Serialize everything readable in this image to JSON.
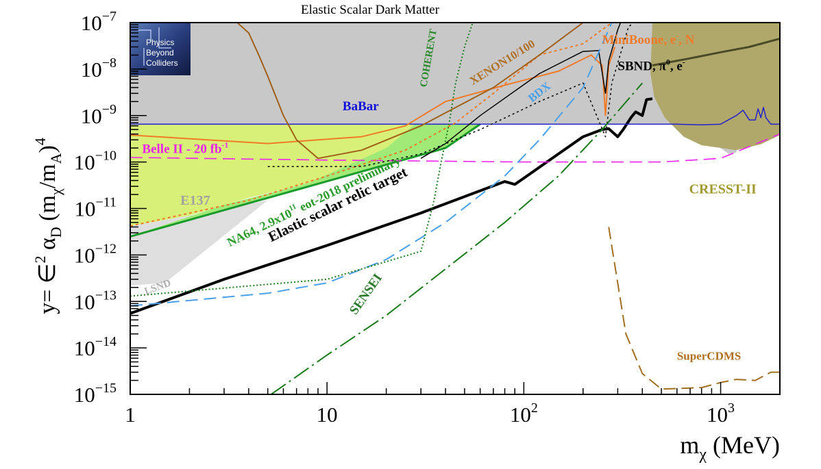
{
  "title": "Elastic Scalar Dark Matter",
  "logo": {
    "lines": [
      "Physics",
      "Beyond",
      "Colliders"
    ]
  },
  "chart_data": {
    "type": "line",
    "title": "Elastic Scalar Dark Matter",
    "xscale": "log",
    "yscale": "log",
    "xlim": [
      1,
      2000
    ],
    "ylim": [
      1e-15,
      1e-07
    ],
    "xlabel_parts": {
      "main": "m",
      "sub": "χ",
      "rest": " (MeV)"
    },
    "ylabel_parts": {
      "a": "y= ∈",
      "b": "2",
      "c": " α",
      "d": "D",
      "e": " (m",
      "f": "χ",
      "g": "/m",
      "h": "A",
      "i": ")",
      "j": "4"
    },
    "x_ticks": [
      {
        "value": 1,
        "label": "1"
      },
      {
        "value": 10,
        "label": "10"
      },
      {
        "value": 100,
        "label": "10",
        "exp": "2"
      },
      {
        "value": 1000,
        "label": "10",
        "exp": "3"
      }
    ],
    "y_ticks": [
      {
        "value": 1e-07,
        "exp": "−7"
      },
      {
        "value": 1e-08,
        "exp": "−8"
      },
      {
        "value": 1e-09,
        "exp": "−9"
      },
      {
        "value": 1e-10,
        "exp": "−10"
      },
      {
        "value": 1e-11,
        "exp": "−11"
      },
      {
        "value": 1e-12,
        "exp": "−12"
      },
      {
        "value": 1e-13,
        "exp": "−13"
      },
      {
        "value": 1e-14,
        "exp": "−14"
      },
      {
        "value": 1e-15,
        "exp": "−15"
      }
    ],
    "regions": [
      {
        "name": "BaBar",
        "fill": "#c8c8c8",
        "points": [
          [
            1,
            1e-07
          ],
          [
            2000,
            1e-07
          ],
          [
            2000,
            6.5e-10
          ],
          [
            1800,
            6.5e-10
          ],
          [
            1700,
            9e-10
          ],
          [
            1650,
            1.5e-09
          ],
          [
            1600,
            9e-10
          ],
          [
            1550,
            1.4e-09
          ],
          [
            1500,
            8e-10
          ],
          [
            1400,
            8e-10
          ],
          [
            1300,
            1.3e-09
          ],
          [
            1200,
            1.6e-10
          ],
          [
            1100,
            1.5e-10
          ],
          [
            1000,
            2e-10
          ],
          [
            800,
            3e-10
          ],
          [
            600,
            6.5e-10
          ],
          [
            1,
            6.5e-10
          ]
        ]
      },
      {
        "name": "E137",
        "fill": "#d8f078",
        "points": [
          [
            1,
            6.5e-10
          ],
          [
            28,
            6.5e-10
          ],
          [
            26,
            5e-10
          ],
          [
            22,
            2.3e-10
          ],
          [
            15,
            9e-11
          ],
          [
            8,
            3.5e-11
          ],
          [
            4,
            1.7e-11
          ],
          [
            2,
            7e-12
          ],
          [
            1,
            4.2e-12
          ]
        ]
      },
      {
        "name": "LSND",
        "fill": "#dedede",
        "points": [
          [
            1,
            4.2e-12
          ],
          [
            2,
            7e-12
          ],
          [
            5,
            1.5e-11
          ],
          [
            1.5,
            2.5e-13
          ],
          [
            1,
            2.2e-13
          ]
        ]
      },
      {
        "name": "NA64",
        "fill": "#a0ea78",
        "points": [
          [
            1,
            2.5e-12
          ],
          [
            40,
            2e-10
          ],
          [
            60,
            6.5e-10
          ],
          [
            28,
            6.5e-10
          ],
          [
            20,
            2e-10
          ],
          [
            8,
            3.5e-11
          ],
          [
            3,
            1.2e-11
          ],
          [
            1,
            2.5e-12
          ]
        ]
      },
      {
        "name": "CRESST-II",
        "fill": "#b0a86a",
        "points": [
          [
            450,
            1e-07
          ],
          [
            2000,
            1e-07
          ],
          [
            2000,
            3.8e-10
          ],
          [
            1600,
            2.4e-10
          ],
          [
            1200,
            1.8e-10
          ],
          [
            800,
            2.3e-10
          ],
          [
            650,
            3.5e-10
          ],
          [
            520,
            9e-10
          ],
          [
            460,
            2.5e-09
          ],
          [
            440,
            8e-09
          ],
          [
            450,
            1e-07
          ]
        ]
      }
    ],
    "series": [
      {
        "name": "Elastic scalar relic target",
        "color": "#000000",
        "width": 4,
        "dash": "",
        "points": [
          [
            1,
            5.5e-14
          ],
          [
            3,
            3e-13
          ],
          [
            10,
            1.6e-12
          ],
          [
            30,
            8e-12
          ],
          [
            80,
            3.8e-11
          ],
          [
            90,
            3.3e-11
          ],
          [
            100,
            4.5e-11
          ],
          [
            150,
            1.5e-10
          ],
          [
            200,
            3.5e-10
          ],
          [
            250,
            5e-10
          ],
          [
            270,
            5.2e-10
          ],
          [
            300,
            3.5e-10
          ],
          [
            320,
            5e-10
          ],
          [
            350,
            9e-10
          ],
          [
            370,
            1.2e-09
          ],
          [
            400,
            1e-09
          ],
          [
            420,
            2.2e-09
          ],
          [
            450,
            2.3e-09
          ]
        ]
      },
      {
        "name": "NA64, 2.9x10¹¹ eot-2018 preliminary",
        "color": "#1a9a2a",
        "width": 3,
        "dash": "",
        "points": [
          [
            1,
            2.5e-12
          ],
          [
            40,
            2e-10
          ],
          [
            60,
            6.5e-10
          ]
        ]
      },
      {
        "name": "Belle II - 20 fb⁻¹",
        "color": "#ee22ee",
        "width": 1.6,
        "dash": "18 9",
        "points": [
          [
            1,
            1.25e-10
          ],
          [
            10,
            1.1e-10
          ],
          [
            100,
            1e-10
          ],
          [
            500,
            1e-10
          ],
          [
            1000,
            1.2e-10
          ],
          [
            2000,
            4e-10
          ]
        ]
      },
      {
        "name": "BaBar",
        "color": "#2222cc",
        "width": 1.5,
        "dash": "",
        "points": [
          [
            1,
            6.5e-10
          ],
          [
            600,
            6.5e-10
          ],
          [
            800,
            6.3e-10
          ],
          [
            1000,
            6.5e-10
          ],
          [
            1200,
            1e-09
          ],
          [
            1300,
            1.3e-09
          ],
          [
            1400,
            8e-10
          ],
          [
            1500,
            8e-10
          ],
          [
            1550,
            1.4e-09
          ],
          [
            1600,
            9e-10
          ],
          [
            1650,
            1.5e-09
          ],
          [
            1700,
            9e-10
          ],
          [
            1800,
            6.5e-10
          ],
          [
            2000,
            6.5e-10
          ]
        ]
      },
      {
        "name": "MiniBoone, e⁻, N",
        "color": "#f07a28",
        "width": 2,
        "dash": "",
        "points": [
          [
            1,
            3.8e-10
          ],
          [
            5,
            2.5e-10
          ],
          [
            15,
            3.5e-10
          ],
          [
            25,
            6e-10
          ],
          [
            40,
            2e-09
          ],
          [
            80,
            4.5e-09
          ],
          [
            150,
            9e-09
          ],
          [
            220,
            2e-08
          ],
          [
            250,
            1.2e-08
          ],
          [
            260,
            1e-09
          ],
          [
            270,
            1.2e-08
          ],
          [
            290,
            3e-08
          ]
        ]
      },
      {
        "name": "MiniBoone dotted",
        "color": "#f07a28",
        "width": 2,
        "dash": "4 4",
        "points": [
          [
            1,
            4.2e-12
          ],
          [
            4,
            1.5e-11
          ],
          [
            10,
            5e-11
          ],
          [
            25,
            1.8e-10
          ],
          [
            45,
            7e-10
          ],
          [
            70,
            3e-09
          ],
          [
            120,
            2e-08
          ],
          [
            200,
            3.5e-08
          ],
          [
            280,
            1e-07
          ]
        ]
      },
      {
        "name": "XENON10/100",
        "color": "#a06018",
        "width": 2,
        "dash": "",
        "points": [
          [
            3.5,
            1e-07
          ],
          [
            4,
            6e-08
          ],
          [
            4.5,
            2e-08
          ],
          [
            5,
            7e-09
          ],
          [
            6,
            1e-09
          ],
          [
            7,
            3e-10
          ],
          [
            9,
            1.2e-10
          ],
          [
            15,
            1.8e-10
          ],
          [
            30,
            6e-10
          ],
          [
            70,
            4e-09
          ],
          [
            120,
            2e-08
          ],
          [
            200,
            1e-07
          ]
        ]
      },
      {
        "name": "SBND, π⁰, e⁻",
        "color": "#000000",
        "width": 1.5,
        "dash": "",
        "points": [
          [
            30,
            1.2e-10
          ],
          [
            40,
            2.5e-10
          ],
          [
            60,
            1e-09
          ],
          [
            120,
            8e-09
          ],
          [
            200,
            2.4e-08
          ],
          [
            240,
            2.5e-08
          ],
          [
            260,
            3e-09
          ],
          [
            270,
            1.5e-08
          ],
          [
            300,
            7e-08
          ],
          [
            310,
            1e-07
          ]
        ]
      },
      {
        "name": "SBND dotted",
        "color": "#000000",
        "width": 1.5,
        "dash": "3 4",
        "points": [
          [
            5,
            8e-11
          ],
          [
            15,
            8e-11
          ],
          [
            30,
            1.5e-10
          ],
          [
            60,
            5e-10
          ],
          [
            120,
            2e-09
          ],
          [
            200,
            5e-09
          ],
          [
            260,
            3.5e-10
          ],
          [
            280,
            5e-09
          ],
          [
            340,
            8e-08
          ],
          [
            360,
            1e-07
          ]
        ]
      },
      {
        "name": "BDX",
        "color": "#4aa0e8",
        "width": 2,
        "dash": "18 9",
        "points": [
          [
            1,
            8e-14
          ],
          [
            5,
            1.5e-13
          ],
          [
            10,
            2.5e-13
          ],
          [
            20,
            8e-13
          ],
          [
            40,
            5e-12
          ],
          [
            80,
            5e-11
          ],
          [
            120,
            3e-10
          ],
          [
            200,
            4e-09
          ],
          [
            280,
            1e-07
          ]
        ]
      },
      {
        "name": "COHERENT",
        "color": "#1a7a1a",
        "width": 2,
        "dash": "2 3",
        "points": [
          [
            1,
            1.3e-13
          ],
          [
            10,
            3e-13
          ],
          [
            30,
            1.2e-12
          ],
          [
            35,
            1.5e-11
          ],
          [
            38,
            1e-10
          ],
          [
            42,
            8e-10
          ],
          [
            45,
            5e-09
          ],
          [
            50,
            3e-08
          ],
          [
            55,
            1e-07
          ]
        ]
      },
      {
        "name": "SENSEI",
        "color": "#1a7a1a",
        "width": 2,
        "dash": "26 6 3 6",
        "points": [
          [
            5.2,
            1e-15
          ],
          [
            10,
            7e-15
          ],
          [
            20,
            5e-14
          ],
          [
            40,
            5e-13
          ],
          [
            80,
            5e-12
          ],
          [
            150,
            5e-11
          ],
          [
            250,
            5e-10
          ],
          [
            400,
            5e-09
          ]
        ]
      },
      {
        "name": "SuperCDMS",
        "color": "#a07020",
        "width": 2,
        "dash": "18 8",
        "points": [
          [
            270,
            4e-12
          ],
          [
            330,
            2e-14
          ],
          [
            400,
            2.8e-15
          ],
          [
            500,
            1.3e-15
          ],
          [
            800,
            1.4e-15
          ],
          [
            1000,
            1.8e-15
          ],
          [
            1200,
            2.1e-15
          ],
          [
            1500,
            2e-15
          ],
          [
            1800,
            3e-15
          ],
          [
            2000,
            3e-15
          ]
        ]
      },
      {
        "name": "CRESST-II",
        "color": "#4a4a28",
        "width": 3,
        "dash": "",
        "points": [
          [
            450,
            1.2e-08
          ],
          [
            700,
            1.7e-08
          ],
          [
            1000,
            2.3e-08
          ],
          [
            1400,
            3e-08
          ],
          [
            2000,
            4.5e-08
          ]
        ]
      }
    ],
    "labels": [
      {
        "text": "BaBar",
        "x": 12,
        "y": 1.3e-09,
        "color": "#1111dd",
        "size": 19,
        "rot": 0
      },
      {
        "text": "E137",
        "x": 1.8,
        "y": 1.2e-11,
        "color": "#a0a0a0",
        "size": 20,
        "rot": 0
      },
      {
        "text": "LSND",
        "x": 1.2,
        "y": 1.4e-13,
        "color": "#b0b0b0",
        "size": 15,
        "rot": -20
      },
      {
        "text": "NA64, 2.9x10",
        "sup": "11",
        "tail": " eot-2018 preliminary",
        "x": 3.2,
        "y": 1.5e-12,
        "color": "#2a9a2a",
        "size": 18,
        "rot": -26
      },
      {
        "text": "Elastic scalar relic target",
        "x": 5.2,
        "y": 1.9e-12,
        "color": "#000000",
        "size": 21,
        "rot": -26
      },
      {
        "text": "Belle II - 20 fb",
        "sup": "-1",
        "x": 1.15,
        "y": 1.55e-10,
        "color": "#ee22ee",
        "size": 19,
        "rot": 0
      },
      {
        "text": "COHERENT",
        "x": 32,
        "y": 4e-09,
        "color": "#2a8a2a",
        "size": 15,
        "rot": -80
      },
      {
        "text": "XENON10/100",
        "x": 55,
        "y": 4.5e-09,
        "color": "#b07028",
        "size": 17,
        "rot": -32
      },
      {
        "text": "BDX",
        "x": 110,
        "y": 1.9e-09,
        "color": "#4aa0e8",
        "size": 17,
        "rot": -38
      },
      {
        "text": "MiniBoone, e",
        "sup": "-",
        "tail": ", N",
        "x": 250,
        "y": 3.5e-08,
        "color": "#f07a28",
        "size": 19,
        "rot": 0
      },
      {
        "text": "SBND, π",
        "sup": "0",
        "tail": ", e",
        "sup2": "-",
        "x": 300,
        "y": 9.5e-09,
        "color": "#000000",
        "size": 19,
        "rot": 0
      },
      {
        "text": "CRESST-II",
        "x": 1520,
        "y": 2.1e-11,
        "color": "#a09a30",
        "size": 20,
        "rot": 0
      },
      {
        "text": "SuperCDMS",
        "x": 1270,
        "y": 5.5e-15,
        "color": "#b07020",
        "size": 17,
        "rot": 0
      },
      {
        "text": "SENSEI",
        "x": 14,
        "y": 5e-14,
        "color": "#2a7a2a",
        "size": 19,
        "rot": -55
      }
    ],
    "grid": false,
    "legend": "none"
  }
}
